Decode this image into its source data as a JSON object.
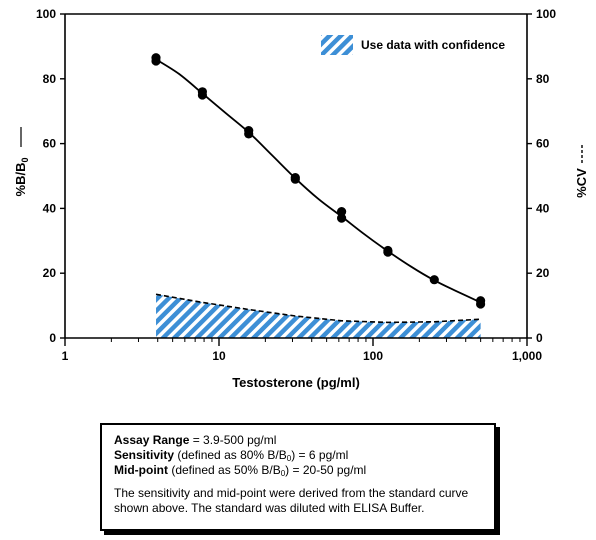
{
  "chart_data": {
    "type": "line",
    "xlabel": "Testosterone (pg/ml)",
    "ylabel_left": "%B/B",
    "ylabel_left_sub": "0",
    "ylabel_right": "%CV",
    "x_scale": "log",
    "xlim": [
      1,
      1000
    ],
    "ylim": [
      0,
      100
    ],
    "x_ticks": [
      {
        "value": 1,
        "label": "1"
      },
      {
        "value": 10,
        "label": "10"
      },
      {
        "value": 100,
        "label": "100"
      },
      {
        "value": 1000,
        "label": "1,000"
      }
    ],
    "y_ticks": [
      0,
      20,
      40,
      60,
      80,
      100
    ],
    "y_tick_labels": [
      "0",
      "20",
      "40",
      "60",
      "80",
      "100"
    ],
    "legend": {
      "label": "Use data with confidence",
      "placement": "top-right"
    },
    "series": [
      {
        "type": "scatter+fit",
        "points": [
          {
            "x": 3.9,
            "y": 86.5
          },
          {
            "x": 3.9,
            "y": 85.5
          },
          {
            "x": 7.8,
            "y": 76.0
          },
          {
            "x": 7.8,
            "y": 75.0
          },
          {
            "x": 15.6,
            "y": 64.0
          },
          {
            "x": 15.6,
            "y": 63.0
          },
          {
            "x": 31.3,
            "y": 49.5
          },
          {
            "x": 31.3,
            "y": 49.0
          },
          {
            "x": 62.5,
            "y": 39.0
          },
          {
            "x": 62.5,
            "y": 37.0
          },
          {
            "x": 125,
            "y": 27.0
          },
          {
            "x": 125,
            "y": 26.5
          },
          {
            "x": 250,
            "y": 18.0
          },
          {
            "x": 500,
            "y": 11.5
          },
          {
            "x": 500,
            "y": 10.5
          }
        ],
        "fit": [
          {
            "x": 3.9,
            "y": 86.0
          },
          {
            "x": 5.5,
            "y": 81.5
          },
          {
            "x": 7.8,
            "y": 75.5
          },
          {
            "x": 11,
            "y": 69.5
          },
          {
            "x": 15.6,
            "y": 63.5
          },
          {
            "x": 22,
            "y": 56.5
          },
          {
            "x": 31.3,
            "y": 49.3
          },
          {
            "x": 44,
            "y": 43.0
          },
          {
            "x": 62.5,
            "y": 37.5
          },
          {
            "x": 88,
            "y": 32.0
          },
          {
            "x": 125,
            "y": 26.8
          },
          {
            "x": 177,
            "y": 22.0
          },
          {
            "x": 250,
            "y": 17.8
          },
          {
            "x": 354,
            "y": 14.3
          },
          {
            "x": 500,
            "y": 11.0
          }
        ]
      },
      {
        "type": "cv-dashed-area",
        "points": [
          {
            "x": 3.9,
            "y": 13.5
          },
          {
            "x": 7.8,
            "y": 11.0
          },
          {
            "x": 15.6,
            "y": 8.8
          },
          {
            "x": 31.3,
            "y": 6.8
          },
          {
            "x": 62.5,
            "y": 5.3
          },
          {
            "x": 125,
            "y": 4.8
          },
          {
            "x": 250,
            "y": 5.0
          },
          {
            "x": 500,
            "y": 5.8
          }
        ]
      }
    ]
  },
  "info": {
    "assay_range_label": "Assay Range",
    "assay_range_value": " = 3.9-500 pg/ml",
    "sensitivity_label": "Sensitivity",
    "sensitivity_text_a": " (defined as 80% B/B",
    "sensitivity_sub": "0",
    "sensitivity_text_b": ") = 6 pg/ml",
    "midpoint_label": "Mid-point",
    "midpoint_text_a": " (defined as 50% B/B",
    "midpoint_sub": "0",
    "midpoint_text_b": ") = 20-50 pg/ml",
    "note": "The sensitivity and mid-point were derived from the standard curve shown above. The standard was diluted with ELISA Buffer."
  },
  "colors": {
    "hatch_blue": "#3d8fd6",
    "hatch_white": "#ffffff",
    "line": "#000000"
  }
}
